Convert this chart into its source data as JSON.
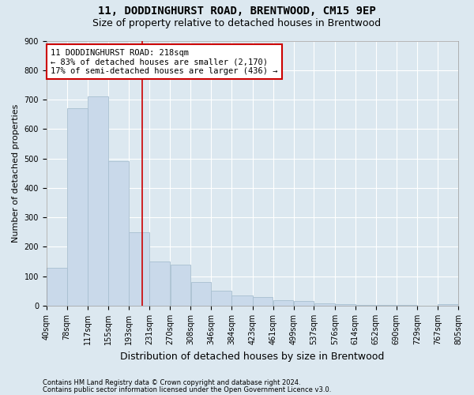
{
  "title": "11, DODDINGHURST ROAD, BRENTWOOD, CM15 9EP",
  "subtitle": "Size of property relative to detached houses in Brentwood",
  "xlabel": "Distribution of detached houses by size in Brentwood",
  "ylabel": "Number of detached properties",
  "footer_line1": "Contains HM Land Registry data © Crown copyright and database right 2024.",
  "footer_line2": "Contains public sector information licensed under the Open Government Licence v3.0.",
  "bar_edges": [
    40,
    78,
    117,
    155,
    193,
    231,
    270,
    308,
    346,
    384,
    423,
    461,
    499,
    537,
    576,
    614,
    652,
    690,
    729,
    767,
    805
  ],
  "bar_heights": [
    130,
    670,
    710,
    490,
    250,
    150,
    140,
    80,
    50,
    35,
    30,
    20,
    15,
    8,
    5,
    4,
    3,
    2,
    1,
    5
  ],
  "bar_color": "#c9d9ea",
  "bar_edge_color": "#a8bfd0",
  "property_size": 218,
  "vline_color": "#cc0000",
  "annotation_text": "11 DODDINGHURST ROAD: 218sqm\n← 83% of detached houses are smaller (2,170)\n17% of semi-detached houses are larger (436) →",
  "annotation_box_facecolor": "#ffffff",
  "annotation_box_edge": "#cc0000",
  "bg_color": "#dce8f0",
  "plot_bg_color": "#dce8f0",
  "ylim": [
    0,
    900
  ],
  "yticks": [
    0,
    100,
    200,
    300,
    400,
    500,
    600,
    700,
    800,
    900
  ],
  "grid_color": "#ffffff",
  "title_fontsize": 10,
  "subtitle_fontsize": 9,
  "ylabel_fontsize": 8,
  "xlabel_fontsize": 9,
  "tick_fontsize": 7,
  "footer_fontsize": 6
}
